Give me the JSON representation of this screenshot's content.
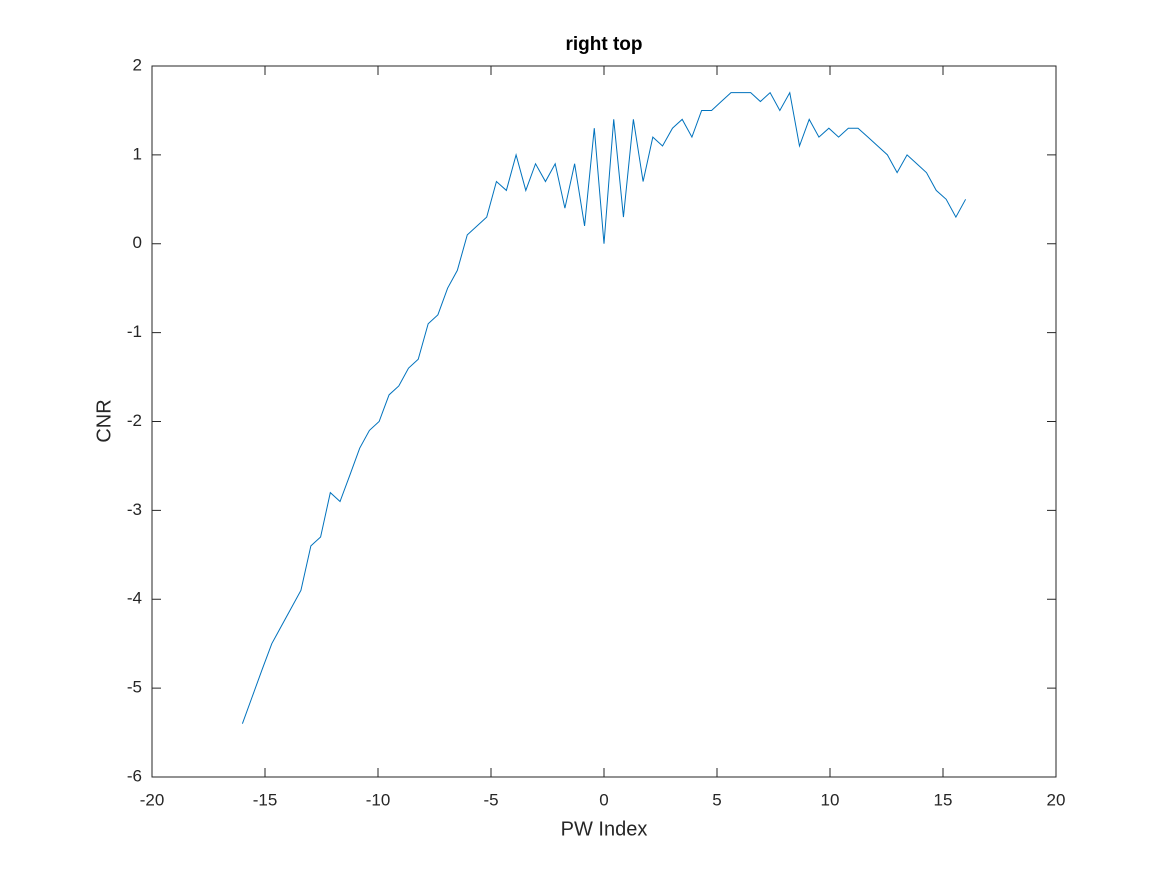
{
  "chart_data": {
    "type": "line",
    "title": "right top",
    "xlabel": "PW Index",
    "ylabel": "CNR",
    "xlim": [
      -20,
      20
    ],
    "xticks": [
      -20,
      -15,
      -10,
      -5,
      0,
      5,
      10,
      15,
      20
    ],
    "ylim": [
      -6,
      2
    ],
    "yticks": [
      -6,
      -5,
      -4,
      -3,
      -2,
      -1,
      0,
      1,
      2
    ],
    "grid": false,
    "series": [
      {
        "color": "#0072bd",
        "x": [
          -16,
          -15.57,
          -15.14,
          -14.7,
          -14.27,
          -13.84,
          -13.41,
          -12.97,
          -12.54,
          -12.11,
          -11.68,
          -11.24,
          -10.81,
          -10.38,
          -9.95,
          -9.51,
          -9.08,
          -8.65,
          -8.22,
          -7.78,
          -7.35,
          -6.92,
          -6.49,
          -6.05,
          -5.62,
          -5.19,
          -4.76,
          -4.32,
          -3.89,
          -3.46,
          -3.03,
          -2.59,
          -2.16,
          -1.73,
          -1.3,
          -0.86,
          -0.43,
          0,
          0.43,
          0.86,
          1.3,
          1.73,
          2.16,
          2.59,
          3.03,
          3.46,
          3.89,
          4.32,
          4.76,
          5.19,
          5.62,
          6.05,
          6.49,
          6.92,
          7.35,
          7.78,
          8.22,
          8.65,
          9.08,
          9.51,
          9.95,
          10.38,
          10.81,
          11.24,
          11.68,
          12.11,
          12.54,
          12.97,
          13.41,
          13.84,
          14.27,
          14.7,
          15.14,
          15.57,
          16
        ],
        "values": [
          -5.4,
          -5.1,
          -4.8,
          -4.5,
          -4.3,
          -4.1,
          -3.9,
          -3.4,
          -3.3,
          -2.8,
          -2.9,
          -2.6,
          -2.3,
          -2.1,
          -2.0,
          -1.7,
          -1.6,
          -1.4,
          -1.3,
          -0.9,
          -0.8,
          -0.5,
          -0.3,
          0.1,
          0.2,
          0.3,
          0.7,
          0.6,
          1.0,
          0.6,
          0.9,
          0.7,
          0.9,
          0.4,
          0.9,
          0.2,
          1.3,
          0.0,
          1.4,
          0.3,
          1.4,
          0.7,
          1.2,
          1.1,
          1.3,
          1.4,
          1.2,
          1.5,
          1.5,
          1.6,
          1.7,
          1.7,
          1.7,
          1.6,
          1.7,
          1.5,
          1.7,
          1.1,
          1.4,
          1.2,
          1.3,
          1.2,
          1.3,
          1.3,
          1.2,
          1.1,
          1.0,
          0.8,
          1.0,
          0.9,
          0.8,
          0.6,
          0.5,
          0.3,
          0.5
        ]
      }
    ]
  }
}
